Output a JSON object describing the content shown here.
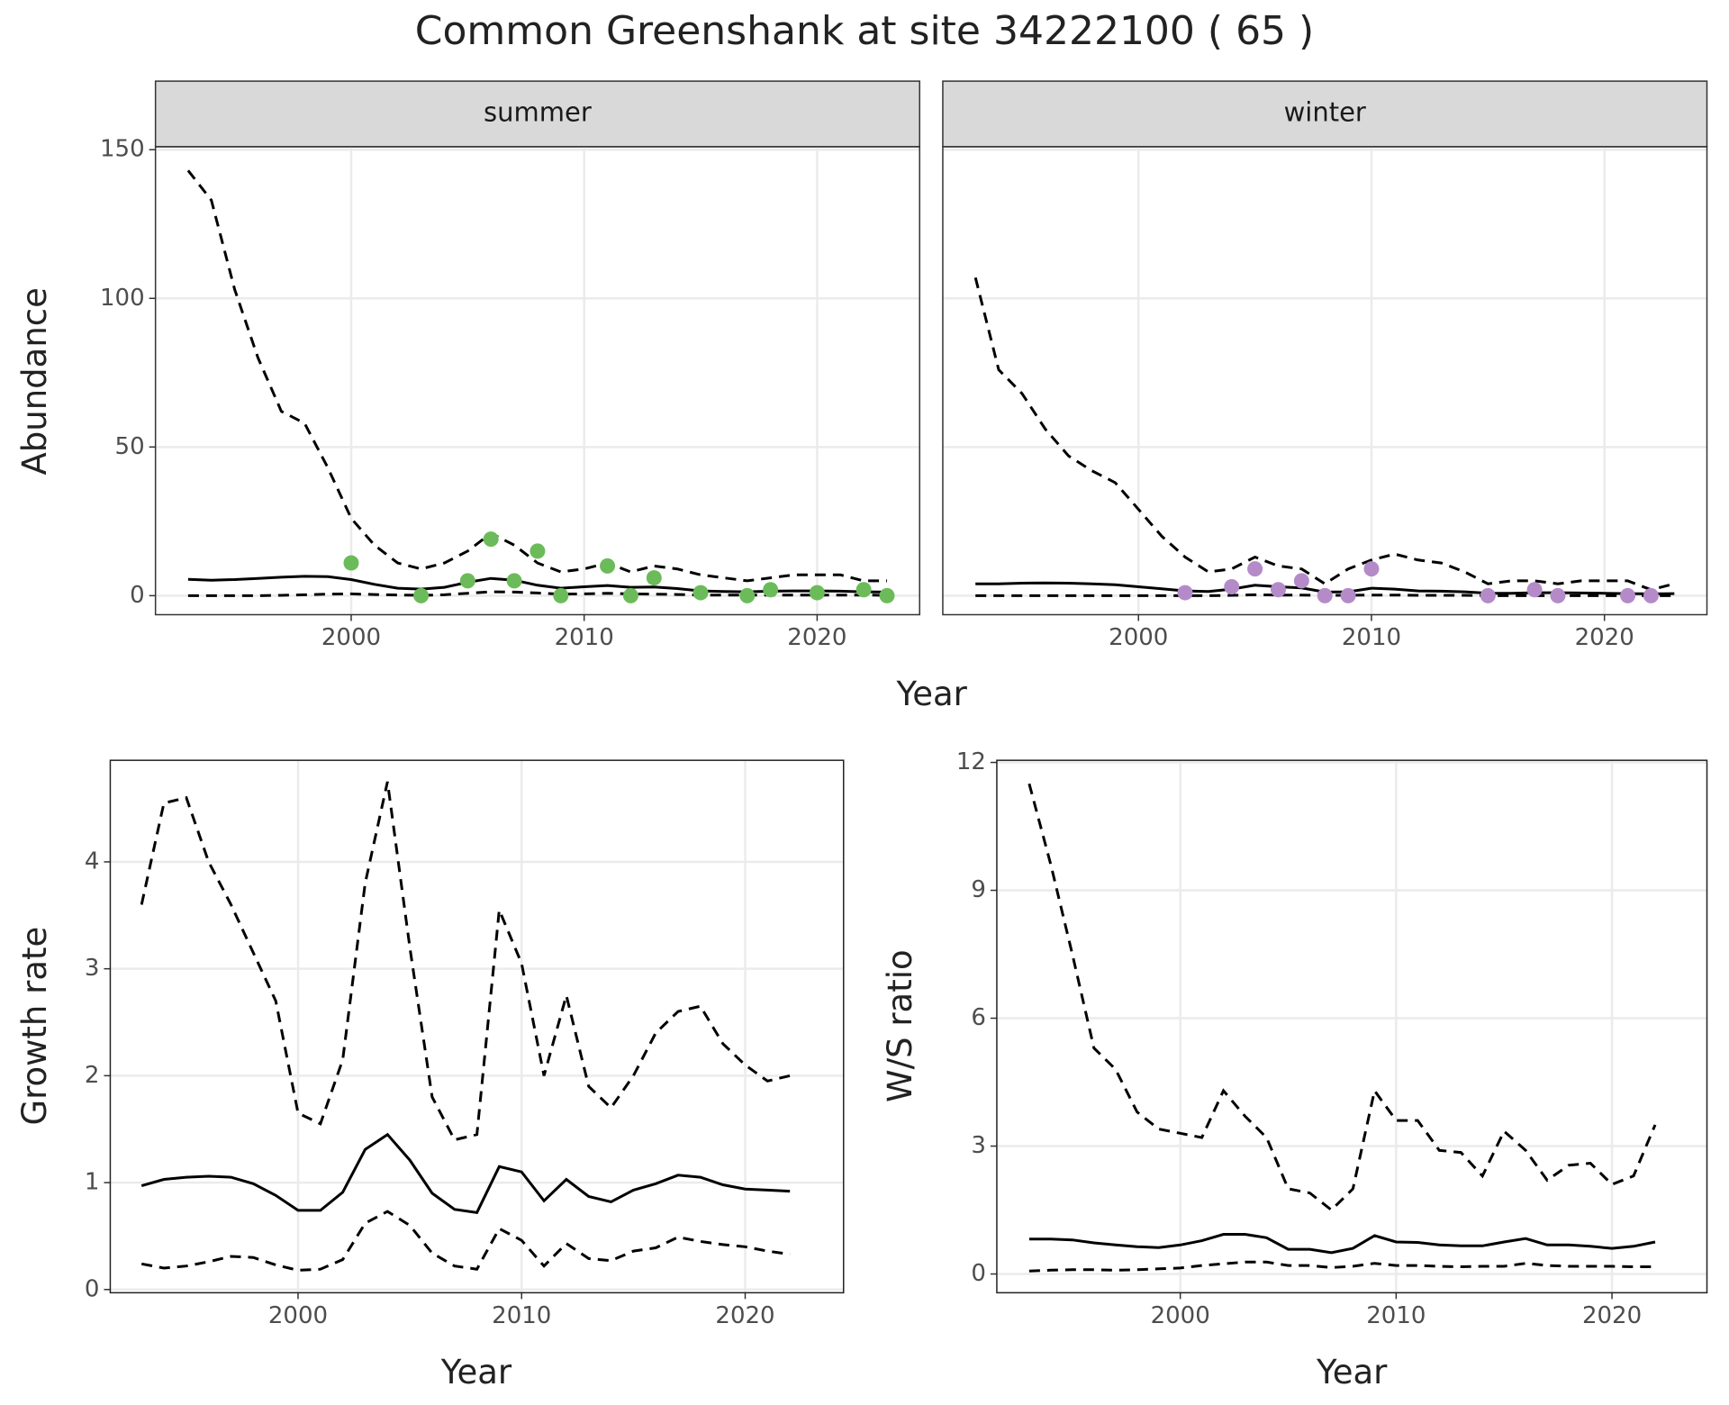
{
  "title": "Common Greenshank at site 34222100 ( 65 )",
  "chart_data": [
    {
      "type": "line",
      "strip": "summer",
      "ylabel": "Abundance",
      "xlabel": "Year",
      "x": [
        1993,
        1994,
        1995,
        1996,
        1997,
        1998,
        1999,
        2000,
        2001,
        2002,
        2003,
        2004,
        2005,
        2006,
        2007,
        2008,
        2009,
        2010,
        2011,
        2012,
        2013,
        2014,
        2015,
        2016,
        2017,
        2018,
        2019,
        2020,
        2021,
        2022,
        2023
      ],
      "xlim": [
        1991.6,
        2024.4
      ],
      "xticks": [
        2000,
        2010,
        2020
      ],
      "ylim": [
        -6.4,
        151
      ],
      "yticks": [
        0,
        50,
        100,
        150
      ],
      "grid": true,
      "ytick_labels": true,
      "series": [
        {
          "kind": "line",
          "dash": true,
          "color": "#000000",
          "values": [
            143,
            133,
            103,
            80,
            62,
            58,
            43,
            26,
            17,
            11,
            9,
            11,
            15,
            21,
            17,
            11,
            8,
            9,
            11,
            8,
            10,
            9,
            7,
            6,
            5,
            6,
            7,
            7,
            7,
            5,
            5
          ]
        },
        {
          "kind": "line",
          "dash": false,
          "color": "#000000",
          "values": [
            5.5,
            5.2,
            5.4,
            5.8,
            6.2,
            6.5,
            6.4,
            5.4,
            3.8,
            2.5,
            2.2,
            2.8,
            4.5,
            5.8,
            5.2,
            3.5,
            2.5,
            3.0,
            3.4,
            2.8,
            2.9,
            2.4,
            1.6,
            1.4,
            1.3,
            1.5,
            1.6,
            1.6,
            1.5,
            1.3,
            1.2
          ]
        },
        {
          "kind": "line",
          "dash": true,
          "color": "#000000",
          "values": [
            0,
            0,
            0,
            0,
            0.1,
            0.3,
            0.5,
            0.6,
            0.4,
            0.2,
            0.1,
            0.3,
            0.8,
            1.3,
            1.2,
            0.9,
            0.5,
            0.6,
            0.8,
            0.6,
            0.5,
            0.4,
            0.2,
            0.2,
            0.2,
            0.2,
            0.2,
            0.2,
            0.2,
            0.2,
            0.1
          ]
        },
        {
          "kind": "points",
          "color": "#6cbb5a",
          "values": [
            null,
            null,
            null,
            null,
            null,
            null,
            null,
            11,
            null,
            null,
            0,
            null,
            5,
            19,
            5,
            15,
            0,
            null,
            10,
            0,
            6,
            null,
            1,
            null,
            0,
            2,
            null,
            1,
            null,
            2,
            0
          ]
        }
      ]
    },
    {
      "type": "line",
      "strip": "winter",
      "x": [
        1993,
        1994,
        1995,
        1996,
        1997,
        1998,
        1999,
        2000,
        2001,
        2002,
        2003,
        2004,
        2005,
        2006,
        2007,
        2008,
        2009,
        2010,
        2011,
        2012,
        2013,
        2014,
        2015,
        2016,
        2017,
        2018,
        2019,
        2020,
        2021,
        2022,
        2023
      ],
      "xlim": [
        1991.6,
        2024.4
      ],
      "xticks": [
        2000,
        2010,
        2020
      ],
      "ylim": [
        -6.4,
        151
      ],
      "yticks": [
        0,
        50,
        100,
        150
      ],
      "grid": true,
      "ytick_labels": false,
      "series": [
        {
          "kind": "line",
          "dash": true,
          "color": "#000000",
          "values": [
            107,
            76,
            68,
            56,
            47,
            42,
            38,
            29,
            20,
            13,
            8,
            9,
            13,
            10,
            9,
            4,
            9,
            12,
            14,
            12,
            11,
            8,
            4,
            5,
            5,
            4,
            5,
            5,
            5,
            2,
            4
          ]
        },
        {
          "kind": "line",
          "dash": false,
          "color": "#000000",
          "values": [
            4,
            4,
            4.2,
            4.3,
            4.2,
            4,
            3.7,
            3,
            2.3,
            1.6,
            1.4,
            2.2,
            3.5,
            3,
            2.6,
            1.2,
            1.3,
            2.5,
            2.2,
            1.6,
            1.5,
            1.3,
            0.8,
            0.8,
            1,
            1,
            0.9,
            0.8,
            0.7,
            0.6,
            0.7
          ]
        },
        {
          "kind": "line",
          "dash": true,
          "color": "#000000",
          "values": [
            0,
            0,
            0,
            0,
            0,
            0,
            0,
            0,
            0,
            0,
            0,
            0.1,
            0.3,
            0.2,
            0.2,
            0.1,
            0.1,
            0.2,
            0.2,
            0.1,
            0.1,
            0.1,
            0,
            0,
            0,
            0,
            0,
            0,
            0,
            0,
            0
          ]
        },
        {
          "kind": "points",
          "color": "#b48bc8",
          "values": [
            null,
            null,
            null,
            null,
            null,
            null,
            null,
            null,
            null,
            1,
            null,
            3,
            9,
            2,
            5,
            0,
            0,
            9,
            null,
            null,
            null,
            null,
            0,
            null,
            2,
            0,
            null,
            null,
            0,
            0,
            null
          ]
        }
      ]
    },
    {
      "type": "line",
      "ylabel": "Growth rate",
      "xlabel": "Year",
      "x": [
        1993,
        1994,
        1995,
        1996,
        1997,
        1998,
        1999,
        2000,
        2001,
        2002,
        2003,
        2004,
        2005,
        2006,
        2007,
        2008,
        2009,
        2010,
        2011,
        2012,
        2013,
        2014,
        2015,
        2016,
        2017,
        2018,
        2019,
        2020,
        2021,
        2022
      ],
      "xlim": [
        1991.6,
        2024.4
      ],
      "xticks": [
        2000,
        2010,
        2020
      ],
      "ylim": [
        -0.03,
        4.95
      ],
      "yticks": [
        0,
        1,
        2,
        3,
        4
      ],
      "grid": true,
      "ytick_labels": true,
      "series": [
        {
          "kind": "line",
          "dash": true,
          "color": "#000000",
          "values": [
            3.6,
            4.55,
            4.6,
            4.0,
            3.6,
            3.15,
            2.7,
            1.65,
            1.55,
            2.15,
            3.8,
            4.75,
            3.2,
            1.8,
            1.4,
            1.45,
            3.55,
            3.05,
            2.0,
            2.75,
            1.9,
            1.7,
            2.0,
            2.4,
            2.6,
            2.65,
            2.3,
            2.1,
            1.95,
            2.0
          ]
        },
        {
          "kind": "line",
          "dash": false,
          "color": "#000000",
          "values": [
            0.97,
            1.03,
            1.05,
            1.06,
            1.05,
            0.99,
            0.88,
            0.74,
            0.74,
            0.91,
            1.31,
            1.45,
            1.21,
            0.9,
            0.75,
            0.72,
            1.15,
            1.1,
            0.83,
            1.03,
            0.87,
            0.82,
            0.93,
            0.99,
            1.07,
            1.05,
            0.98,
            0.94,
            0.93,
            0.92
          ]
        },
        {
          "kind": "line",
          "dash": true,
          "color": "#000000",
          "values": [
            0.24,
            0.2,
            0.22,
            0.26,
            0.31,
            0.3,
            0.23,
            0.18,
            0.19,
            0.28,
            0.62,
            0.73,
            0.6,
            0.34,
            0.22,
            0.19,
            0.57,
            0.46,
            0.22,
            0.43,
            0.29,
            0.27,
            0.36,
            0.39,
            0.49,
            0.45,
            0.42,
            0.4,
            0.36,
            0.33
          ]
        }
      ]
    },
    {
      "type": "line",
      "ylabel": "W/S ratio",
      "xlabel": "Year",
      "x": [
        1993,
        1994,
        1995,
        1996,
        1997,
        1998,
        1999,
        2000,
        2001,
        2002,
        2003,
        2004,
        2005,
        2006,
        2007,
        2008,
        2009,
        2010,
        2011,
        2012,
        2013,
        2014,
        2015,
        2016,
        2017,
        2018,
        2019,
        2020,
        2021,
        2022
      ],
      "xlim": [
        1991.5,
        2024.4
      ],
      "xticks": [
        2000,
        2010,
        2020
      ],
      "ylim": [
        -0.44,
        12.05
      ],
      "yticks": [
        0,
        3,
        6,
        9,
        12
      ],
      "grid": true,
      "ytick_labels": true,
      "series": [
        {
          "kind": "line",
          "dash": true,
          "color": "#000000",
          "values": [
            11.5,
            9.6,
            7.5,
            5.3,
            4.8,
            3.8,
            3.4,
            3.3,
            3.2,
            4.3,
            3.7,
            3.2,
            2.0,
            1.9,
            1.5,
            2.0,
            4.3,
            3.6,
            3.6,
            2.9,
            2.85,
            2.3,
            3.35,
            2.9,
            2.2,
            2.55,
            2.6,
            2.1,
            2.3,
            3.5
          ]
        },
        {
          "kind": "line",
          "dash": false,
          "color": "#000000",
          "values": [
            0.82,
            0.82,
            0.8,
            0.73,
            0.68,
            0.64,
            0.62,
            0.68,
            0.78,
            0.93,
            0.93,
            0.85,
            0.58,
            0.58,
            0.5,
            0.6,
            0.9,
            0.75,
            0.74,
            0.68,
            0.66,
            0.66,
            0.75,
            0.83,
            0.68,
            0.68,
            0.65,
            0.6,
            0.65,
            0.75
          ]
        },
        {
          "kind": "line",
          "dash": true,
          "color": "#000000",
          "values": [
            0.07,
            0.09,
            0.1,
            0.1,
            0.09,
            0.1,
            0.12,
            0.14,
            0.2,
            0.24,
            0.28,
            0.28,
            0.2,
            0.2,
            0.15,
            0.18,
            0.25,
            0.2,
            0.2,
            0.18,
            0.17,
            0.18,
            0.18,
            0.25,
            0.2,
            0.18,
            0.18,
            0.18,
            0.17,
            0.17
          ]
        }
      ]
    }
  ]
}
